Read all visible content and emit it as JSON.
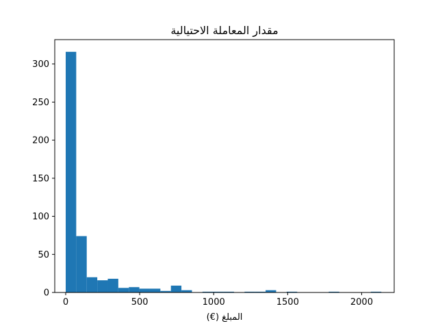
{
  "chart_data": {
    "type": "bar",
    "title": "مقدار المعاملة الاحتيالية",
    "xlabel": "المبلغ (€)",
    "ylabel": "",
    "xlim": [
      -74,
      2220
    ],
    "ylim": [
      0,
      332
    ],
    "x_ticks": [
      0,
      500,
      1000,
      1500,
      2000
    ],
    "y_ticks": [
      0,
      50,
      100,
      150,
      200,
      250,
      300
    ],
    "bin_width": 71.1,
    "bins": [
      {
        "x0": 0.0,
        "count": 316
      },
      {
        "x0": 71.1,
        "count": 74
      },
      {
        "x0": 142.2,
        "count": 20
      },
      {
        "x0": 213.3,
        "count": 16
      },
      {
        "x0": 284.4,
        "count": 18
      },
      {
        "x0": 355.5,
        "count": 6
      },
      {
        "x0": 426.6,
        "count": 7
      },
      {
        "x0": 497.7,
        "count": 5
      },
      {
        "x0": 568.8,
        "count": 5
      },
      {
        "x0": 639.9,
        "count": 2
      },
      {
        "x0": 711.0,
        "count": 9
      },
      {
        "x0": 782.1,
        "count": 3
      },
      {
        "x0": 853.2,
        "count": 0
      },
      {
        "x0": 924.3,
        "count": 1
      },
      {
        "x0": 995.4,
        "count": 1
      },
      {
        "x0": 1066.5,
        "count": 1
      },
      {
        "x0": 1137.6,
        "count": 0
      },
      {
        "x0": 1208.7,
        "count": 1
      },
      {
        "x0": 1279.8,
        "count": 1
      },
      {
        "x0": 1350.9,
        "count": 3
      },
      {
        "x0": 1422.0,
        "count": 0
      },
      {
        "x0": 1493.1,
        "count": 1
      },
      {
        "x0": 1564.2,
        "count": 0
      },
      {
        "x0": 1635.3,
        "count": 0
      },
      {
        "x0": 1706.4,
        "count": 0
      },
      {
        "x0": 1777.5,
        "count": 1
      },
      {
        "x0": 1848.6,
        "count": 0
      },
      {
        "x0": 1919.7,
        "count": 0
      },
      {
        "x0": 1990.8,
        "count": 0
      },
      {
        "x0": 2061.9,
        "count": 1
      }
    ],
    "bar_color": "#1f77b4",
    "grid": false
  }
}
